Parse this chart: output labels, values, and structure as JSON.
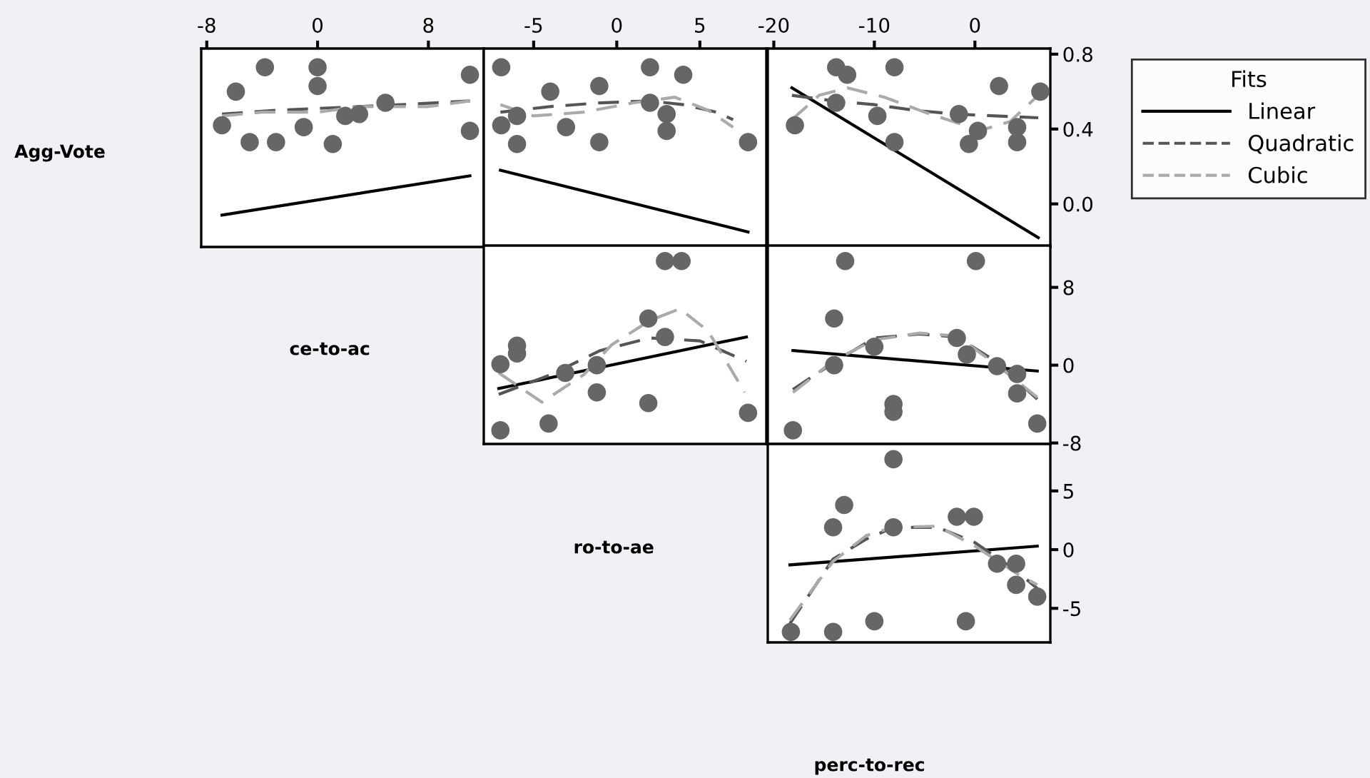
{
  "chart_data": [
    {
      "type": "scatter",
      "ylabel": "Agg-Vote",
      "xlim": [
        -8.4,
        12.0
      ],
      "ylim": [
        -0.23,
        0.83
      ],
      "xticks": [
        -8,
        0,
        8
      ],
      "tick_labels": "x",
      "series": [
        {
          "color": "#666666",
          "marker": "circle",
          "x": [
            -3.8,
            0,
            0,
            -5.9,
            -6.9,
            -4.9,
            -3.0,
            -1.0,
            1.1,
            2.0,
            3.0,
            4.9,
            11.0,
            11.0
          ],
          "values": [
            0.73,
            0.73,
            0.63,
            0.6,
            0.42,
            0.33,
            0.33,
            0.41,
            0.32,
            0.47,
            0.48,
            0.54,
            0.69,
            0.39
          ]
        },
        {
          "type": "line",
          "color": "#000000",
          "line_style": "solid",
          "x": [
            -6.9,
            11.0
          ],
          "values": [
            -0.06,
            0.15
          ]
        },
        {
          "type": "line",
          "color": "#555555",
          "line_style": "dashed",
          "x": [
            -6.9,
            -3,
            0,
            3,
            6,
            11.0
          ],
          "values": [
            0.48,
            0.5,
            0.51,
            0.52,
            0.53,
            0.55
          ]
        },
        {
          "type": "line",
          "color": "#aaaaaa",
          "line_style": "dashed",
          "x": [
            -6.9,
            -4,
            0,
            3,
            5,
            8,
            11.0
          ],
          "values": [
            0.47,
            0.49,
            0.49,
            0.52,
            0.52,
            0.52,
            0.55
          ]
        }
      ]
    },
    {
      "type": "scatter",
      "xlim": [
        -8.0,
        9.0
      ],
      "ylim": [
        -0.23,
        0.83
      ],
      "xticks": [
        -5,
        0,
        5
      ],
      "tick_labels": "x",
      "series": [
        {
          "color": "#666666",
          "marker": "circle",
          "x": [
            -6.95,
            -4.0,
            -1.05,
            2.0,
            4.0,
            2.0,
            3.0,
            3.0,
            -6.0,
            -6.95,
            -6.0,
            -3.05,
            -1.05,
            7.9
          ],
          "values": [
            0.73,
            0.6,
            0.63,
            0.73,
            0.69,
            0.54,
            0.48,
            0.39,
            0.47,
            0.42,
            0.32,
            0.41,
            0.33,
            0.33
          ]
        },
        {
          "type": "line",
          "color": "#000000",
          "line_style": "solid",
          "x": [
            -7.0,
            7.9
          ],
          "values": [
            0.18,
            -0.15
          ]
        },
        {
          "type": "line",
          "color": "#555555",
          "line_style": "dashed",
          "x": [
            -7.0,
            -4,
            -1,
            2,
            4,
            6,
            7.0
          ],
          "values": [
            0.49,
            0.52,
            0.54,
            0.55,
            0.53,
            0.49,
            0.45
          ]
        },
        {
          "type": "line",
          "color": "#aaaaaa",
          "line_style": "dashed",
          "x": [
            -7.0,
            -5,
            -2,
            1,
            3.5,
            5.5,
            7.0
          ],
          "values": [
            0.53,
            0.47,
            0.49,
            0.54,
            0.57,
            0.5,
            0.41
          ]
        }
      ]
    },
    {
      "type": "scatter",
      "xlim": [
        -20.6,
        7.5
      ],
      "ylim": [
        -0.23,
        0.83
      ],
      "xticks": [
        -20,
        -10,
        0
      ],
      "yticks": [
        {
          "value": 0,
          "label": "0.0"
        },
        0.4,
        0.8
      ],
      "legend": "right",
      "legend_title": "Fits",
      "series": [
        {
          "color": "#666666",
          "marker": "circle",
          "x": [
            -17.9,
            -13.8,
            -12.7,
            -13.8,
            -8.0,
            -9.7,
            -8.0,
            -1.6,
            0.3,
            -0.6,
            2.4,
            4.2,
            4.2,
            6.5
          ],
          "values": [
            0.42,
            0.73,
            0.69,
            0.54,
            0.73,
            0.47,
            0.33,
            0.48,
            0.39,
            0.32,
            0.63,
            0.41,
            0.33,
            0.6
          ]
        },
        {
          "type": "line",
          "name": "Linear",
          "color": "#000000",
          "line_style": "solid",
          "x": [
            -18.2,
            6.3
          ],
          "values": [
            0.62,
            -0.18
          ]
        },
        {
          "type": "line",
          "name": "Quadratic",
          "color": "#555555",
          "line_style": "dashed",
          "x": [
            -18.2,
            -14,
            -10,
            -6,
            -2,
            2,
            6.3
          ],
          "values": [
            0.58,
            0.55,
            0.53,
            0.5,
            0.48,
            0.47,
            0.46
          ]
        },
        {
          "type": "line",
          "name": "Cubic",
          "color": "#aaaaaa",
          "line_style": "dashed",
          "x": [
            -18.2,
            -15.5,
            -12.7,
            -9,
            -5,
            -1,
            1,
            3.5,
            6.3
          ],
          "values": [
            0.45,
            0.58,
            0.62,
            0.57,
            0.49,
            0.42,
            0.4,
            0.44,
            0.58
          ]
        }
      ]
    },
    {
      "type": "scatter",
      "ylabel": "ce-to-ac",
      "xlim": [
        -8.0,
        9.0
      ],
      "ylim": [
        -8.1,
        12.3
      ],
      "tick_labels": false,
      "series": [
        {
          "color": "#666666",
          "marker": "circle",
          "x": [
            2.9,
            3.9,
            -7.0,
            -6.0,
            -6.0,
            -7.0,
            -4.1,
            -3.1,
            -1.2,
            -1.2,
            1.9,
            2.9,
            1.9,
            7.9
          ],
          "values": [
            10.7,
            10.7,
            0.1,
            2.0,
            1.2,
            -6.7,
            -6.0,
            -0.8,
            0.0,
            -2.8,
            4.8,
            2.9,
            -3.9,
            -4.9
          ]
        },
        {
          "type": "line",
          "color": "#000000",
          "line_style": "solid",
          "x": [
            -7.1,
            7.8
          ],
          "values": [
            -2.4,
            2.9
          ]
        },
        {
          "type": "line",
          "color": "#555555",
          "line_style": "dashed",
          "x": [
            -7.1,
            -4,
            -1,
            2,
            5,
            7.8
          ],
          "values": [
            -3.0,
            -1.0,
            1.5,
            2.8,
            2.5,
            0.4
          ]
        },
        {
          "type": "line",
          "color": "#aaaaaa",
          "line_style": "dashed",
          "x": [
            -7.1,
            -4.5,
            -2,
            -0.3,
            2,
            3.8,
            5.5,
            7.7
          ],
          "values": [
            -0.8,
            -3.8,
            -1.0,
            2.1,
            4.6,
            5.8,
            3.5,
            -2.8
          ]
        }
      ]
    },
    {
      "type": "scatter",
      "xlim": [
        -20.6,
        7.5
      ],
      "ylim": [
        -8.1,
        12.3
      ],
      "yticks": [
        -8,
        0,
        8
      ],
      "tick_labels": "y",
      "series": [
        {
          "color": "#666666",
          "marker": "circle",
          "x": [
            -12.9,
            0.1,
            -14.0,
            -14.0,
            -10.0,
            -1.8,
            -0.8,
            2.2,
            4.2,
            4.2,
            -8.1,
            -8.1,
            -18.1,
            6.2
          ],
          "values": [
            10.7,
            10.7,
            4.8,
            0.0,
            1.9,
            2.8,
            1.1,
            -0.1,
            -0.9,
            -2.9,
            -4.0,
            -4.8,
            -6.7,
            -6.0
          ]
        },
        {
          "type": "line",
          "color": "#000000",
          "line_style": "solid",
          "x": [
            -18.1,
            6.2
          ],
          "values": [
            1.5,
            -0.6
          ]
        },
        {
          "type": "line",
          "color": "#555555",
          "line_style": "dashed",
          "x": [
            -18.1,
            -14,
            -10,
            -5.5,
            -1.8,
            2.2,
            6.2
          ],
          "values": [
            -2.5,
            0.3,
            2.8,
            3.2,
            2.9,
            0.3,
            -3.5
          ]
        },
        {
          "type": "line",
          "color": "#aaaaaa",
          "line_style": "dashed",
          "x": [
            -18.1,
            -14,
            -10,
            -5.5,
            -1.8,
            2.2,
            6.2
          ],
          "values": [
            -2.8,
            0.5,
            2.6,
            3.3,
            3.0,
            0.0,
            -3.3
          ]
        }
      ]
    },
    {
      "type": "scatter",
      "ylabel": "ro-to-ae",
      "xlabel": "perc-to-rec",
      "xlim": [
        -20.6,
        7.5
      ],
      "ylim": [
        -7.9,
        9.0
      ],
      "yticks": [
        -5,
        0,
        5
      ],
      "tick_labels": "y",
      "series": [
        {
          "color": "#666666",
          "marker": "circle",
          "x": [
            -8.1,
            -13.0,
            -14.1,
            -8.1,
            -1.8,
            -0.1,
            2.2,
            4.1,
            4.1,
            6.2,
            -18.3,
            -14.1,
            -10.0,
            -0.9
          ],
          "values": [
            7.7,
            3.8,
            1.9,
            1.9,
            2.8,
            2.8,
            -1.2,
            -1.2,
            -3.0,
            -4.0,
            -7.0,
            -7.0,
            -6.1,
            -6.1
          ]
        },
        {
          "type": "line",
          "color": "#000000",
          "line_style": "solid",
          "x": [
            -18.4,
            6.2
          ],
          "values": [
            -1.3,
            0.3
          ]
        },
        {
          "type": "line",
          "color": "#555555",
          "line_style": "dashed",
          "x": [
            -18.4,
            -14.1,
            -10.8,
            -8.1,
            -3.7,
            0,
            4.1,
            6.2
          ],
          "values": [
            -6.3,
            -0.8,
            0.9,
            1.9,
            1.9,
            0.6,
            -1.8,
            -3.3
          ]
        },
        {
          "type": "line",
          "color": "#aaaaaa",
          "line_style": "dashed",
          "x": [
            -18.4,
            -14.1,
            -10.8,
            -8.1,
            -3.7,
            0,
            4.1,
            6.2
          ],
          "values": [
            -6.0,
            -1.0,
            1.2,
            1.9,
            2.0,
            0.3,
            -2.0,
            -3.0
          ]
        }
      ]
    }
  ]
}
